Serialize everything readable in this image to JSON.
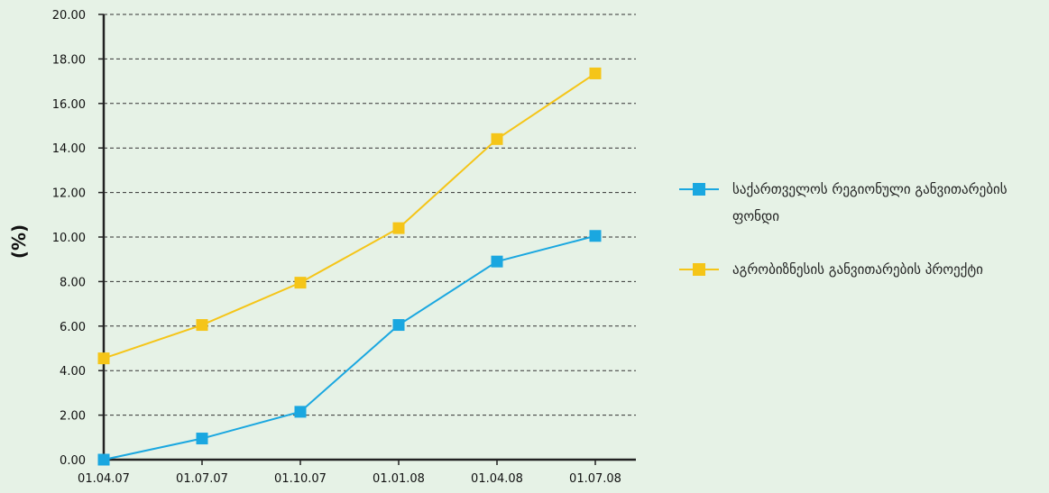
{
  "chart_data": {
    "type": "line",
    "title": "",
    "xlabel": "",
    "ylabel": "(%)",
    "categories": [
      "01.04.07",
      "01.07.07",
      "01.10.07",
      "01.01.08",
      "01.04.08",
      "01.07.08"
    ],
    "ylim": [
      0,
      20
    ],
    "yticks": [
      "0.00",
      "2.00",
      "4.00",
      "6.00",
      "8.00",
      "10.00",
      "12.00",
      "14.00",
      "16.00",
      "18.00",
      "20.00"
    ],
    "grid": true,
    "legend_position": "right",
    "series": [
      {
        "name": "საქართველოს რეგიონული განვითარების ფონდი",
        "legend_lines": [
          "საქართველოს რეგიონული განვითარების",
          "ფონდი"
        ],
        "color": "#1aa7e0",
        "values": [
          0.0,
          0.95,
          2.15,
          6.05,
          8.9,
          10.05
        ]
      },
      {
        "name": "აგრობიზნესის განვითარების პროექტი",
        "legend_lines": [
          "აგრობიზნესის განვითარების პროექტი"
        ],
        "color": "#f5c518",
        "values": [
          4.55,
          6.05,
          7.95,
          10.4,
          14.4,
          17.35
        ]
      }
    ]
  }
}
